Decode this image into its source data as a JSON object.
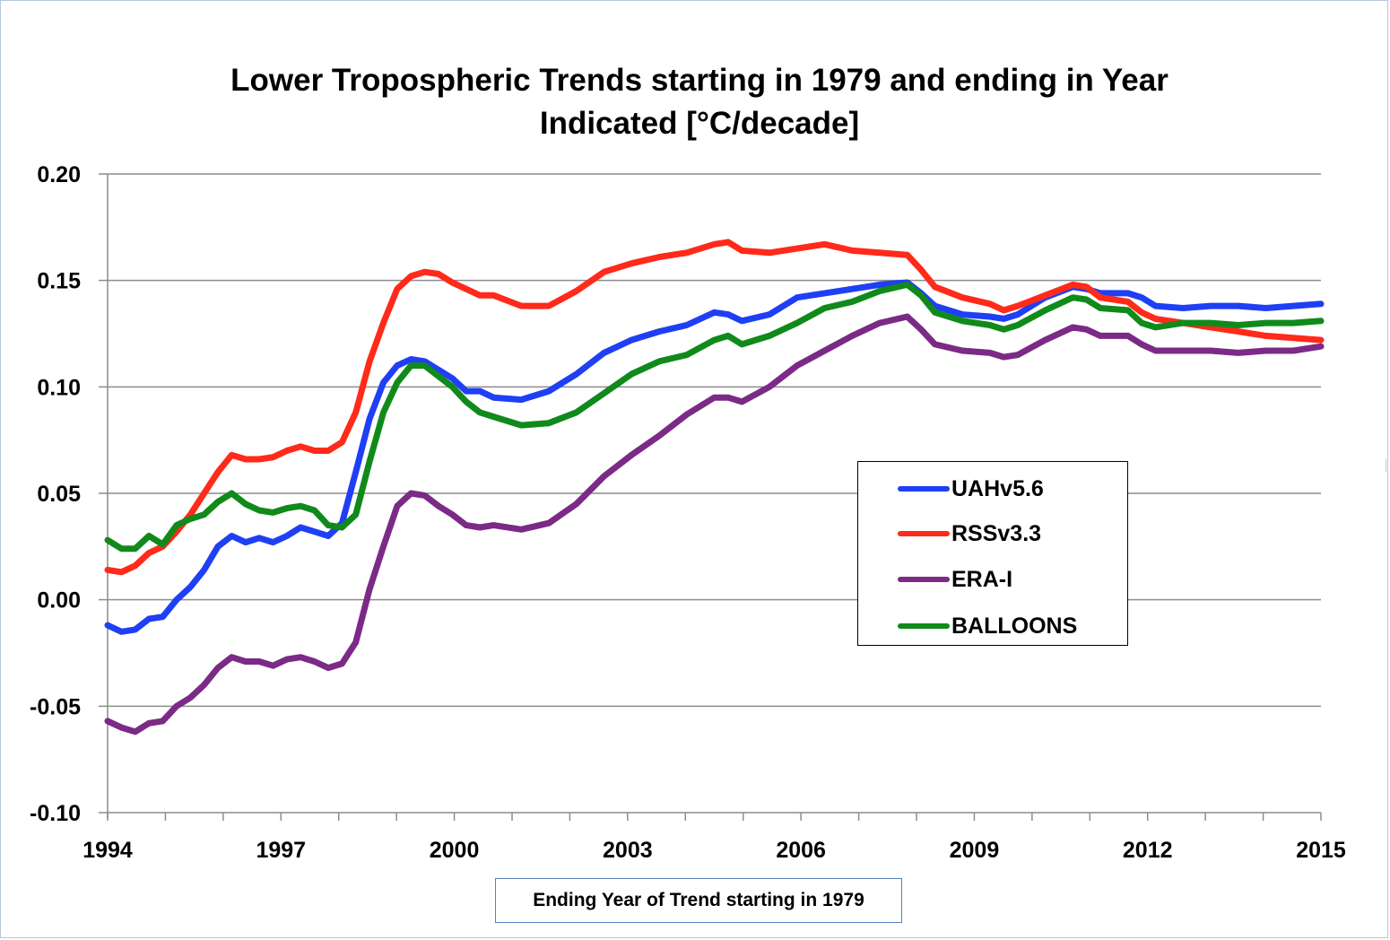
{
  "chart_data": {
    "type": "line",
    "title_lines": [
      "Lower Tropospheric Trends starting in 1979 and ending in Year",
      "Indicated [°C/decade]"
    ],
    "xlabel": "Ending Year of Trend starting in 1979",
    "ylabel": "",
    "xlim": [
      1994,
      2015
    ],
    "ylim": [
      -0.1,
      0.2
    ],
    "x_ticks": [
      1994,
      1997,
      2000,
      2003,
      2006,
      2009,
      2012,
      2015
    ],
    "y_ticks": [
      "0.20",
      "0.15",
      "0.10",
      "0.05",
      "0.00",
      "-0.05",
      "-0.10"
    ],
    "grid": "horizontal",
    "legend_position": "center-right",
    "series": [
      {
        "name": "UAHv5.6",
        "color": "#1f3ff5",
        "points": [
          [
            1994.0,
            -0.012
          ],
          [
            1994.25,
            -0.015
          ],
          [
            1994.5,
            -0.014
          ],
          [
            1994.75,
            -0.009
          ],
          [
            1995.0,
            -0.008
          ],
          [
            1995.25,
            0.0
          ],
          [
            1995.5,
            0.006
          ],
          [
            1995.75,
            0.014
          ],
          [
            1996.0,
            0.025
          ],
          [
            1996.25,
            0.03
          ],
          [
            1996.5,
            0.027
          ],
          [
            1996.75,
            0.029
          ],
          [
            1997.0,
            0.027
          ],
          [
            1997.25,
            0.03
          ],
          [
            1997.5,
            0.034
          ],
          [
            1997.75,
            0.032
          ],
          [
            1998.0,
            0.03
          ],
          [
            1998.25,
            0.036
          ],
          [
            1998.5,
            0.06
          ],
          [
            1998.75,
            0.085
          ],
          [
            1999.0,
            0.102
          ],
          [
            1999.25,
            0.11
          ],
          [
            1999.5,
            0.113
          ],
          [
            1999.75,
            0.112
          ],
          [
            2000.0,
            0.108
          ],
          [
            2000.25,
            0.104
          ],
          [
            2000.5,
            0.098
          ],
          [
            2000.75,
            0.098
          ],
          [
            2001.0,
            0.095
          ],
          [
            2001.5,
            0.094
          ],
          [
            2002.0,
            0.098
          ],
          [
            2002.5,
            0.106
          ],
          [
            2003.0,
            0.116
          ],
          [
            2003.5,
            0.122
          ],
          [
            2004.0,
            0.126
          ],
          [
            2004.5,
            0.129
          ],
          [
            2005.0,
            0.135
          ],
          [
            2005.25,
            0.134
          ],
          [
            2005.5,
            0.131
          ],
          [
            2006.0,
            0.134
          ],
          [
            2006.5,
            0.142
          ],
          [
            2007.0,
            0.144
          ],
          [
            2007.5,
            0.146
          ],
          [
            2008.0,
            0.148
          ],
          [
            2008.5,
            0.149
          ],
          [
            2008.75,
            0.144
          ],
          [
            2009.0,
            0.138
          ],
          [
            2009.5,
            0.134
          ],
          [
            2010.0,
            0.133
          ],
          [
            2010.25,
            0.132
          ],
          [
            2010.5,
            0.134
          ],
          [
            2011.0,
            0.142
          ],
          [
            2011.5,
            0.147
          ],
          [
            2011.75,
            0.146
          ],
          [
            2012.0,
            0.144
          ],
          [
            2012.5,
            0.144
          ],
          [
            2012.75,
            0.142
          ],
          [
            2013.0,
            0.138
          ],
          [
            2013.5,
            0.137
          ],
          [
            2014.0,
            0.138
          ],
          [
            2014.5,
            0.138
          ],
          [
            2015.0,
            0.137
          ],
          [
            2015.5,
            0.138
          ],
          [
            2016.0,
            0.139
          ]
        ]
      },
      {
        "name": "RSSv3.3",
        "color": "#ff2a1a",
        "points": [
          [
            1994.0,
            0.014
          ],
          [
            1994.25,
            0.013
          ],
          [
            1994.5,
            0.016
          ],
          [
            1994.75,
            0.022
          ],
          [
            1995.0,
            0.025
          ],
          [
            1995.25,
            0.032
          ],
          [
            1995.5,
            0.04
          ],
          [
            1995.75,
            0.05
          ],
          [
            1996.0,
            0.06
          ],
          [
            1996.25,
            0.068
          ],
          [
            1996.5,
            0.066
          ],
          [
            1996.75,
            0.066
          ],
          [
            1997.0,
            0.067
          ],
          [
            1997.25,
            0.07
          ],
          [
            1997.5,
            0.072
          ],
          [
            1997.75,
            0.07
          ],
          [
            1998.0,
            0.07
          ],
          [
            1998.25,
            0.074
          ],
          [
            1998.5,
            0.088
          ],
          [
            1998.75,
            0.112
          ],
          [
            1999.0,
            0.13
          ],
          [
            1999.25,
            0.146
          ],
          [
            1999.5,
            0.152
          ],
          [
            1999.75,
            0.154
          ],
          [
            2000.0,
            0.153
          ],
          [
            2000.25,
            0.149
          ],
          [
            2000.5,
            0.146
          ],
          [
            2000.75,
            0.143
          ],
          [
            2001.0,
            0.143
          ],
          [
            2001.5,
            0.138
          ],
          [
            2002.0,
            0.138
          ],
          [
            2002.5,
            0.145
          ],
          [
            2003.0,
            0.154
          ],
          [
            2003.5,
            0.158
          ],
          [
            2004.0,
            0.161
          ],
          [
            2004.5,
            0.163
          ],
          [
            2005.0,
            0.167
          ],
          [
            2005.25,
            0.168
          ],
          [
            2005.5,
            0.164
          ],
          [
            2006.0,
            0.163
          ],
          [
            2006.5,
            0.165
          ],
          [
            2007.0,
            0.167
          ],
          [
            2007.5,
            0.164
          ],
          [
            2008.0,
            0.163
          ],
          [
            2008.5,
            0.162
          ],
          [
            2008.75,
            0.155
          ],
          [
            2009.0,
            0.147
          ],
          [
            2009.5,
            0.142
          ],
          [
            2010.0,
            0.139
          ],
          [
            2010.25,
            0.136
          ],
          [
            2010.5,
            0.138
          ],
          [
            2011.0,
            0.143
          ],
          [
            2011.5,
            0.148
          ],
          [
            2011.75,
            0.147
          ],
          [
            2012.0,
            0.142
          ],
          [
            2012.5,
            0.14
          ],
          [
            2012.75,
            0.135
          ],
          [
            2013.0,
            0.132
          ],
          [
            2013.5,
            0.13
          ],
          [
            2014.0,
            0.128
          ],
          [
            2014.5,
            0.126
          ],
          [
            2015.0,
            0.124
          ],
          [
            2015.5,
            0.123
          ],
          [
            2016.0,
            0.122
          ]
        ]
      },
      {
        "name": "ERA-I",
        "color": "#7b2a86",
        "points": [
          [
            1994.0,
            -0.057
          ],
          [
            1994.25,
            -0.06
          ],
          [
            1994.5,
            -0.062
          ],
          [
            1994.75,
            -0.058
          ],
          [
            1995.0,
            -0.057
          ],
          [
            1995.25,
            -0.05
          ],
          [
            1995.5,
            -0.046
          ],
          [
            1995.75,
            -0.04
          ],
          [
            1996.0,
            -0.032
          ],
          [
            1996.25,
            -0.027
          ],
          [
            1996.5,
            -0.029
          ],
          [
            1996.75,
            -0.029
          ],
          [
            1997.0,
            -0.031
          ],
          [
            1997.25,
            -0.028
          ],
          [
            1997.5,
            -0.027
          ],
          [
            1997.75,
            -0.029
          ],
          [
            1998.0,
            -0.032
          ],
          [
            1998.25,
            -0.03
          ],
          [
            1998.5,
            -0.02
          ],
          [
            1998.75,
            0.005
          ],
          [
            1999.0,
            0.025
          ],
          [
            1999.25,
            0.044
          ],
          [
            1999.5,
            0.05
          ],
          [
            1999.75,
            0.049
          ],
          [
            2000.0,
            0.044
          ],
          [
            2000.25,
            0.04
          ],
          [
            2000.5,
            0.035
          ],
          [
            2000.75,
            0.034
          ],
          [
            2001.0,
            0.035
          ],
          [
            2001.5,
            0.033
          ],
          [
            2002.0,
            0.036
          ],
          [
            2002.5,
            0.045
          ],
          [
            2003.0,
            0.058
          ],
          [
            2003.5,
            0.068
          ],
          [
            2004.0,
            0.077
          ],
          [
            2004.5,
            0.087
          ],
          [
            2005.0,
            0.095
          ],
          [
            2005.25,
            0.095
          ],
          [
            2005.5,
            0.093
          ],
          [
            2006.0,
            0.1
          ],
          [
            2006.5,
            0.11
          ],
          [
            2007.0,
            0.117
          ],
          [
            2007.5,
            0.124
          ],
          [
            2008.0,
            0.13
          ],
          [
            2008.5,
            0.133
          ],
          [
            2008.75,
            0.127
          ],
          [
            2009.0,
            0.12
          ],
          [
            2009.5,
            0.117
          ],
          [
            2010.0,
            0.116
          ],
          [
            2010.25,
            0.114
          ],
          [
            2010.5,
            0.115
          ],
          [
            2011.0,
            0.122
          ],
          [
            2011.5,
            0.128
          ],
          [
            2011.75,
            0.127
          ],
          [
            2012.0,
            0.124
          ],
          [
            2012.5,
            0.124
          ],
          [
            2012.75,
            0.12
          ],
          [
            2013.0,
            0.117
          ],
          [
            2013.5,
            0.117
          ],
          [
            2014.0,
            0.117
          ],
          [
            2014.5,
            0.116
          ],
          [
            2015.0,
            0.117
          ],
          [
            2015.5,
            0.117
          ],
          [
            2016.0,
            0.119
          ]
        ]
      },
      {
        "name": "BALLOONS",
        "color": "#108a1a",
        "points": [
          [
            1994.0,
            0.028
          ],
          [
            1994.25,
            0.024
          ],
          [
            1994.5,
            0.024
          ],
          [
            1994.75,
            0.03
          ],
          [
            1995.0,
            0.026
          ],
          [
            1995.25,
            0.035
          ],
          [
            1995.5,
            0.038
          ],
          [
            1995.75,
            0.04
          ],
          [
            1996.0,
            0.046
          ],
          [
            1996.25,
            0.05
          ],
          [
            1996.5,
            0.045
          ],
          [
            1996.75,
            0.042
          ],
          [
            1997.0,
            0.041
          ],
          [
            1997.25,
            0.043
          ],
          [
            1997.5,
            0.044
          ],
          [
            1997.75,
            0.042
          ],
          [
            1998.0,
            0.035
          ],
          [
            1998.25,
            0.034
          ],
          [
            1998.5,
            0.04
          ],
          [
            1998.75,
            0.065
          ],
          [
            1999.0,
            0.088
          ],
          [
            1999.25,
            0.102
          ],
          [
            1999.5,
            0.11
          ],
          [
            1999.75,
            0.11
          ],
          [
            2000.0,
            0.105
          ],
          [
            2000.25,
            0.1
          ],
          [
            2000.5,
            0.093
          ],
          [
            2000.75,
            0.088
          ],
          [
            2001.0,
            0.086
          ],
          [
            2001.5,
            0.082
          ],
          [
            2002.0,
            0.083
          ],
          [
            2002.5,
            0.088
          ],
          [
            2003.0,
            0.097
          ],
          [
            2003.5,
            0.106
          ],
          [
            2004.0,
            0.112
          ],
          [
            2004.5,
            0.115
          ],
          [
            2005.0,
            0.122
          ],
          [
            2005.25,
            0.124
          ],
          [
            2005.5,
            0.12
          ],
          [
            2006.0,
            0.124
          ],
          [
            2006.5,
            0.13
          ],
          [
            2007.0,
            0.137
          ],
          [
            2007.5,
            0.14
          ],
          [
            2008.0,
            0.145
          ],
          [
            2008.5,
            0.148
          ],
          [
            2008.75,
            0.143
          ],
          [
            2009.0,
            0.135
          ],
          [
            2009.5,
            0.131
          ],
          [
            2010.0,
            0.129
          ],
          [
            2010.25,
            0.127
          ],
          [
            2010.5,
            0.129
          ],
          [
            2011.0,
            0.136
          ],
          [
            2011.5,
            0.142
          ],
          [
            2011.75,
            0.141
          ],
          [
            2012.0,
            0.137
          ],
          [
            2012.5,
            0.136
          ],
          [
            2012.75,
            0.13
          ],
          [
            2013.0,
            0.128
          ],
          [
            2013.5,
            0.13
          ],
          [
            2014.0,
            0.13
          ],
          [
            2014.5,
            0.129
          ],
          [
            2015.0,
            0.13
          ],
          [
            2015.5,
            0.13
          ],
          [
            2016.0,
            0.131
          ]
        ]
      }
    ]
  }
}
